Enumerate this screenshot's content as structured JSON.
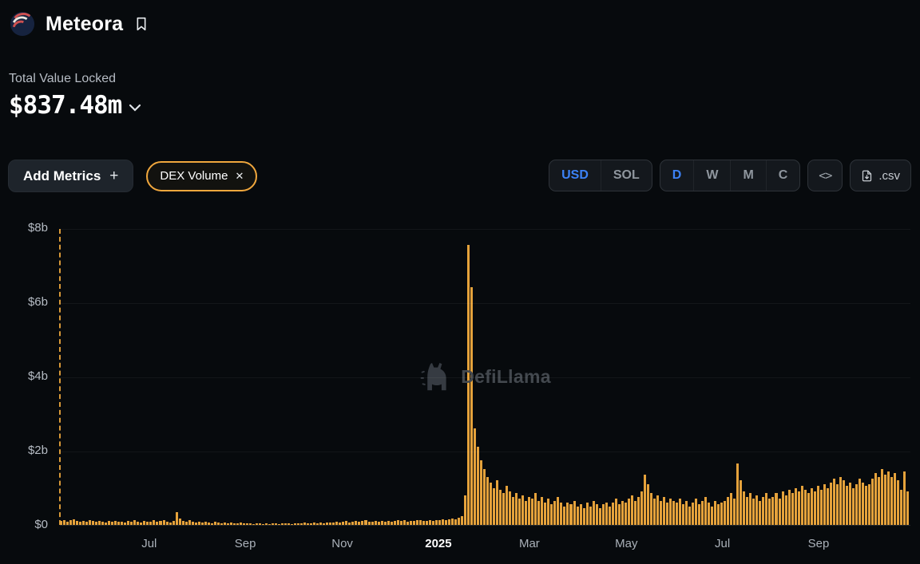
{
  "header": {
    "title": "Meteora"
  },
  "tvl": {
    "label": "Total Value Locked",
    "value": "$837.48m"
  },
  "toolbar": {
    "add_metrics_label": "Add Metrics",
    "add_metrics_plus": "+",
    "chip": {
      "label": "DEX Volume",
      "close": "✕"
    },
    "currency": {
      "options": [
        "USD",
        "SOL"
      ],
      "selected": "USD"
    },
    "interval": {
      "options": [
        "D",
        "W",
        "M",
        "C"
      ],
      "selected": "D"
    },
    "embed_label": "<>",
    "csv_label": ".csv"
  },
  "watermark": {
    "text": "DefiLlama"
  },
  "colors": {
    "background": "#070a0d",
    "accent_orange": "#f0a73d",
    "accent_blue": "#3c82f6",
    "bar": "#e5a23b",
    "text_muted": "#b6bcc4"
  },
  "chart_data": {
    "type": "bar",
    "title": "DEX Volume",
    "ylim": [
      0,
      8
    ],
    "unit": "$ billions",
    "grid": true,
    "bar_color": "#e5a23b",
    "y_ticks": [
      {
        "label": "$0",
        "value": 0
      },
      {
        "label": "$2b",
        "value": 2
      },
      {
        "label": "$4b",
        "value": 4
      },
      {
        "label": "$6b",
        "value": 6
      },
      {
        "label": "$8b",
        "value": 8
      }
    ],
    "x_ticks": [
      {
        "label": "Jul",
        "pos": 0.105,
        "bold": false
      },
      {
        "label": "Sep",
        "pos": 0.218,
        "bold": false
      },
      {
        "label": "Nov",
        "pos": 0.332,
        "bold": false
      },
      {
        "label": "2025",
        "pos": 0.445,
        "bold": true
      },
      {
        "label": "Mar",
        "pos": 0.552,
        "bold": false
      },
      {
        "label": "May",
        "pos": 0.666,
        "bold": false
      },
      {
        "label": "Jul",
        "pos": 0.779,
        "bold": false
      },
      {
        "label": "Sep",
        "pos": 0.892,
        "bold": false
      }
    ],
    "values": [
      0.1,
      0.13,
      0.09,
      0.12,
      0.15,
      0.1,
      0.08,
      0.11,
      0.09,
      0.12,
      0.1,
      0.08,
      0.11,
      0.09,
      0.07,
      0.1,
      0.08,
      0.11,
      0.09,
      0.08,
      0.07,
      0.1,
      0.08,
      0.12,
      0.09,
      0.07,
      0.11,
      0.08,
      0.09,
      0.12,
      0.08,
      0.1,
      0.14,
      0.09,
      0.07,
      0.11,
      0.35,
      0.18,
      0.1,
      0.08,
      0.12,
      0.09,
      0.07,
      0.08,
      0.06,
      0.09,
      0.07,
      0.05,
      0.08,
      0.06,
      0.04,
      0.07,
      0.05,
      0.06,
      0.04,
      0.05,
      0.06,
      0.04,
      0.04,
      0.05,
      0.03,
      0.04,
      0.05,
      0.03,
      0.04,
      0.03,
      0.05,
      0.04,
      0.03,
      0.04,
      0.05,
      0.04,
      0.03,
      0.04,
      0.05,
      0.04,
      0.06,
      0.05,
      0.04,
      0.06,
      0.05,
      0.07,
      0.05,
      0.06,
      0.07,
      0.06,
      0.08,
      0.07,
      0.08,
      0.1,
      0.07,
      0.09,
      0.11,
      0.08,
      0.1,
      0.12,
      0.09,
      0.08,
      0.1,
      0.09,
      0.11,
      0.08,
      0.1,
      0.09,
      0.11,
      0.13,
      0.1,
      0.12,
      0.09,
      0.11,
      0.1,
      0.12,
      0.14,
      0.11,
      0.1,
      0.12,
      0.11,
      0.13,
      0.14,
      0.16,
      0.13,
      0.15,
      0.18,
      0.16,
      0.2,
      0.24,
      0.8,
      7.55,
      6.4,
      2.6,
      2.1,
      1.75,
      1.5,
      1.3,
      1.15,
      1.0,
      1.2,
      0.95,
      0.85,
      1.05,
      0.9,
      0.75,
      0.85,
      0.7,
      0.8,
      0.65,
      0.75,
      0.7,
      0.85,
      0.65,
      0.75,
      0.6,
      0.7,
      0.55,
      0.65,
      0.75,
      0.6,
      0.5,
      0.6,
      0.55,
      0.65,
      0.5,
      0.55,
      0.45,
      0.6,
      0.5,
      0.65,
      0.55,
      0.45,
      0.55,
      0.6,
      0.5,
      0.6,
      0.7,
      0.55,
      0.65,
      0.6,
      0.7,
      0.8,
      0.65,
      0.75,
      0.9,
      1.35,
      1.1,
      0.85,
      0.7,
      0.8,
      0.65,
      0.75,
      0.6,
      0.7,
      0.65,
      0.6,
      0.7,
      0.55,
      0.65,
      0.5,
      0.6,
      0.7,
      0.55,
      0.65,
      0.75,
      0.6,
      0.5,
      0.65,
      0.55,
      0.6,
      0.65,
      0.75,
      0.85,
      0.7,
      1.65,
      1.2,
      0.9,
      0.75,
      0.85,
      0.7,
      0.8,
      0.65,
      0.75,
      0.85,
      0.7,
      0.75,
      0.85,
      0.7,
      0.9,
      0.8,
      0.95,
      0.85,
      1.0,
      0.9,
      1.05,
      0.95,
      0.85,
      1.0,
      0.9,
      1.05,
      0.95,
      1.1,
      1.0,
      1.15,
      1.25,
      1.1,
      1.3,
      1.2,
      1.05,
      1.15,
      1.0,
      1.1,
      1.25,
      1.15,
      1.05,
      1.1,
      1.25,
      1.4,
      1.3,
      1.5,
      1.35,
      1.45,
      1.3,
      1.4,
      1.2,
      0.95,
      1.45,
      0.9
    ]
  }
}
